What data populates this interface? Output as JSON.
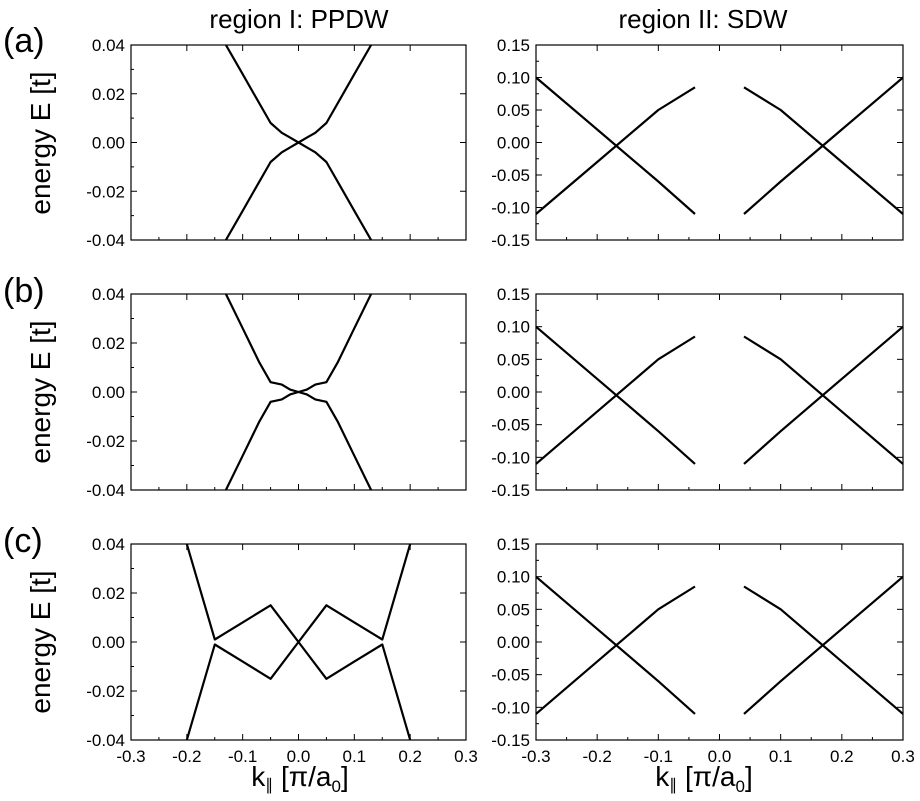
{
  "figure": {
    "col_titles": [
      "region I: PPDW",
      "region II: SDW"
    ],
    "panel_labels": [
      "(a)",
      "(b)",
      "(c)"
    ],
    "ylabel": "energy E [t]",
    "xlabel_main": "k",
    "xlabel_sub": "∥",
    "xlabel_bracket_open": " [π/a",
    "xlabel_bracket_sub": "0",
    "xlabel_bracket_close": "]",
    "line_color": "#000000"
  },
  "chart_data": [
    {
      "panel": "(a)",
      "column": "region I: PPDW",
      "type": "line",
      "xlim": [
        -0.3,
        0.3
      ],
      "ylim": [
        -0.04,
        0.04
      ],
      "yticks": [
        "0.04",
        "0.02",
        "0.00",
        "-0.02",
        "-0.04"
      ],
      "xticks": [
        "-0.3",
        "-0.2",
        "-0.1",
        "0.0",
        "0.1",
        "0.2",
        "0.3"
      ],
      "series": [
        {
          "x": [
            -0.13,
            -0.1,
            -0.075,
            -0.05,
            -0.03,
            -0.015,
            0,
            0.015,
            0.03,
            0.05,
            0.075,
            0.1,
            0.13
          ],
          "y": [
            0.04,
            0.028,
            0.018,
            0.008,
            0.004,
            0.002,
            0,
            -0.002,
            -0.004,
            -0.008,
            -0.018,
            -0.028,
            -0.04
          ]
        },
        {
          "x": [
            -0.13,
            -0.1,
            -0.075,
            -0.05,
            -0.03,
            -0.015,
            0,
            0.015,
            0.03,
            0.05,
            0.075,
            0.1,
            0.13
          ],
          "y": [
            -0.04,
            -0.028,
            -0.018,
            -0.008,
            -0.004,
            -0.002,
            0,
            0.002,
            0.004,
            0.008,
            0.018,
            0.028,
            0.04
          ]
        }
      ]
    },
    {
      "panel": "(a)",
      "column": "region II: SDW",
      "type": "line",
      "xlim": [
        -0.3,
        0.3
      ],
      "ylim": [
        -0.15,
        0.15
      ],
      "yticks": [
        "0.15",
        "0.10",
        "0.05",
        "0.00",
        "-0.05",
        "-0.10",
        "-0.15"
      ],
      "xticks": [
        "-0.3",
        "-0.2",
        "-0.1",
        "0.0",
        "0.1",
        "0.2",
        "0.3"
      ],
      "series": [
        {
          "x": [
            -0.3,
            -0.2,
            -0.1,
            -0.04
          ],
          "y": [
            0.1,
            0.02,
            -0.06,
            -0.11
          ]
        },
        {
          "x": [
            -0.3,
            -0.2,
            -0.1,
            -0.04
          ],
          "y": [
            -0.11,
            -0.03,
            0.05,
            0.085
          ]
        },
        {
          "x": [
            0.04,
            0.1,
            0.2,
            0.3
          ],
          "y": [
            -0.11,
            -0.06,
            0.02,
            0.1
          ]
        },
        {
          "x": [
            0.04,
            0.1,
            0.2,
            0.3
          ],
          "y": [
            0.085,
            0.05,
            -0.03,
            -0.11
          ]
        }
      ]
    },
    {
      "panel": "(b)",
      "column": "region I: PPDW",
      "type": "line",
      "xlim": [
        -0.3,
        0.3
      ],
      "ylim": [
        -0.04,
        0.04
      ],
      "yticks": [
        "0.04",
        "0.02",
        "0.00",
        "-0.02",
        "-0.04"
      ],
      "xticks": [
        "-0.3",
        "-0.2",
        "-0.1",
        "0.0",
        "0.1",
        "0.2",
        "0.3"
      ],
      "series": [
        {
          "x": [
            -0.13,
            -0.1,
            -0.07,
            -0.05,
            -0.03,
            -0.015,
            0,
            0.015,
            0.03,
            0.05,
            0.07,
            0.1,
            0.13
          ],
          "y": [
            0.04,
            0.026,
            0.012,
            0.004,
            0.003,
            0.001,
            0,
            -0.001,
            -0.003,
            -0.004,
            -0.012,
            -0.026,
            -0.04
          ]
        },
        {
          "x": [
            -0.13,
            -0.1,
            -0.07,
            -0.05,
            -0.03,
            -0.015,
            0,
            0.015,
            0.03,
            0.05,
            0.07,
            0.1,
            0.13
          ],
          "y": [
            -0.04,
            -0.026,
            -0.012,
            -0.004,
            -0.003,
            -0.001,
            0,
            0.001,
            0.003,
            0.004,
            0.012,
            0.026,
            0.04
          ]
        }
      ]
    },
    {
      "panel": "(b)",
      "column": "region II: SDW",
      "type": "line",
      "xlim": [
        -0.3,
        0.3
      ],
      "ylim": [
        -0.15,
        0.15
      ],
      "yticks": [
        "0.15",
        "0.10",
        "0.05",
        "0.00",
        "-0.05",
        "-0.10",
        "-0.15"
      ],
      "xticks": [
        "-0.3",
        "-0.2",
        "-0.1",
        "0.0",
        "0.1",
        "0.2",
        "0.3"
      ],
      "series": [
        {
          "x": [
            -0.3,
            -0.2,
            -0.1,
            -0.04
          ],
          "y": [
            0.1,
            0.02,
            -0.06,
            -0.11
          ]
        },
        {
          "x": [
            -0.3,
            -0.2,
            -0.1,
            -0.04
          ],
          "y": [
            -0.11,
            -0.03,
            0.05,
            0.085
          ]
        },
        {
          "x": [
            0.04,
            0.1,
            0.2,
            0.3
          ],
          "y": [
            -0.11,
            -0.06,
            0.02,
            0.1
          ]
        },
        {
          "x": [
            0.04,
            0.1,
            0.2,
            0.3
          ],
          "y": [
            0.085,
            0.05,
            -0.03,
            -0.11
          ]
        }
      ]
    },
    {
      "panel": "(c)",
      "column": "region I: PPDW",
      "type": "line",
      "xlim": [
        -0.3,
        0.3
      ],
      "ylim": [
        -0.04,
        0.04
      ],
      "yticks": [
        "0.04",
        "0.02",
        "0.00",
        "-0.02",
        "-0.04"
      ],
      "xticks": [
        "-0.3",
        "-0.2",
        "-0.1",
        "0.0",
        "0.1",
        "0.2",
        "0.3"
      ],
      "series": [
        {
          "x": [
            -0.2,
            -0.15,
            -0.1,
            -0.05,
            0,
            0.05,
            0.1,
            0.15,
            0.2
          ],
          "y": [
            0.04,
            0.001,
            0.008,
            0.015,
            0,
            -0.015,
            -0.008,
            -0.001,
            -0.04
          ]
        },
        {
          "x": [
            -0.2,
            -0.15,
            -0.1,
            -0.05,
            0,
            0.05,
            0.1,
            0.15,
            0.2
          ],
          "y": [
            -0.04,
            -0.001,
            -0.008,
            -0.015,
            0,
            0.015,
            0.008,
            0.001,
            0.04
          ]
        }
      ]
    },
    {
      "panel": "(c)",
      "column": "region II: SDW",
      "type": "line",
      "xlim": [
        -0.3,
        0.3
      ],
      "ylim": [
        -0.15,
        0.15
      ],
      "yticks": [
        "0.15",
        "0.10",
        "0.05",
        "0.00",
        "-0.05",
        "-0.10",
        "-0.15"
      ],
      "xticks": [
        "-0.3",
        "-0.2",
        "-0.1",
        "0.0",
        "0.1",
        "0.2",
        "0.3"
      ],
      "series": [
        {
          "x": [
            -0.3,
            -0.2,
            -0.1,
            -0.04
          ],
          "y": [
            0.1,
            0.02,
            -0.06,
            -0.11
          ]
        },
        {
          "x": [
            -0.3,
            -0.2,
            -0.1,
            -0.04
          ],
          "y": [
            -0.11,
            -0.03,
            0.05,
            0.085
          ]
        },
        {
          "x": [
            0.04,
            0.1,
            0.2,
            0.3
          ],
          "y": [
            -0.11,
            -0.06,
            0.02,
            0.1
          ]
        },
        {
          "x": [
            0.04,
            0.1,
            0.2,
            0.3
          ],
          "y": [
            0.085,
            0.05,
            -0.03,
            -0.11
          ]
        }
      ]
    }
  ]
}
